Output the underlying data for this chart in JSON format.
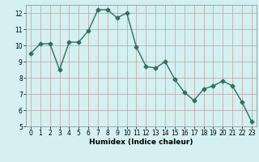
{
  "x": [
    0,
    1,
    2,
    3,
    4,
    5,
    6,
    7,
    8,
    9,
    10,
    11,
    12,
    13,
    14,
    15,
    16,
    17,
    18,
    19,
    20,
    21,
    22,
    23
  ],
  "y": [
    9.5,
    10.1,
    10.1,
    8.5,
    10.2,
    10.2,
    10.9,
    12.2,
    12.2,
    11.7,
    12.0,
    9.9,
    8.7,
    8.6,
    9.0,
    7.9,
    7.1,
    6.6,
    7.3,
    7.5,
    7.8,
    7.5,
    6.5,
    5.3
  ],
  "line_color": "#2d7060",
  "marker": "D",
  "marker_size": 2.5,
  "bg_color": "#d4f0f0",
  "grid_color": "#b0d8d8",
  "xlabel": "Humidex (Indice chaleur)",
  "ylim": [
    5,
    12.5
  ],
  "xlim": [
    -0.5,
    23.5
  ],
  "yticks": [
    5,
    6,
    7,
    8,
    9,
    10,
    11,
    12
  ],
  "xticks": [
    0,
    1,
    2,
    3,
    4,
    5,
    6,
    7,
    8,
    9,
    10,
    11,
    12,
    13,
    14,
    15,
    16,
    17,
    18,
    19,
    20,
    21,
    22,
    23
  ],
  "tick_fontsize": 5.5,
  "xlabel_fontsize": 6.5,
  "line_width": 1.0
}
